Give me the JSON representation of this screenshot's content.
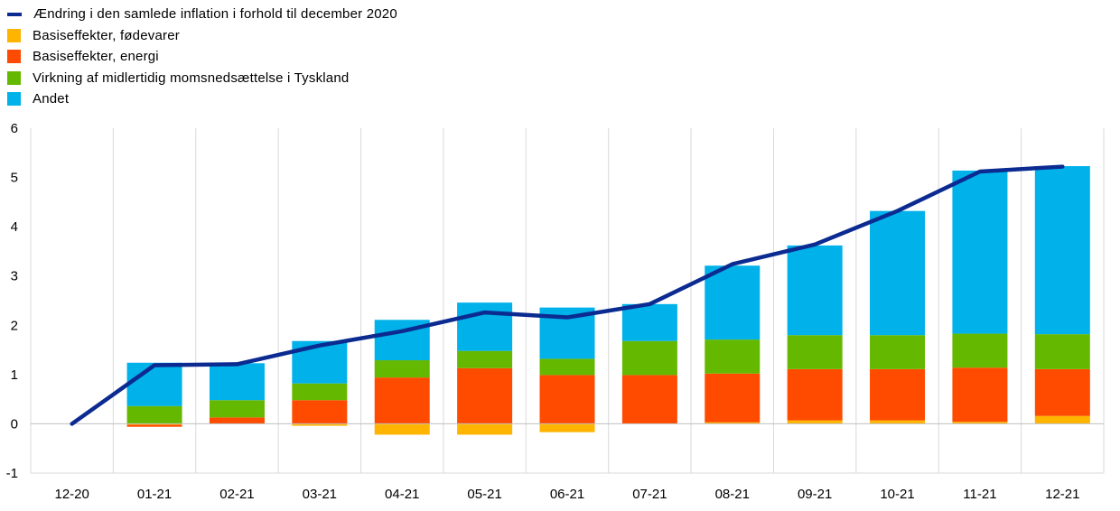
{
  "colors": {
    "line": "#0b2b91",
    "food": "#ffb400",
    "energy": "#ff4b00",
    "germany_vat": "#65b800",
    "other": "#00b1ea",
    "grid": "#d9d9d9",
    "axis": "#000000"
  },
  "chart_data": {
    "type": "bar",
    "stacked": true,
    "title": "",
    "xlabel": "",
    "ylabel": "",
    "ylim": [
      -1,
      6
    ],
    "yticks": [
      -1,
      0,
      1,
      2,
      3,
      4,
      5,
      6
    ],
    "grid": "vertical",
    "legend_position": "top-left",
    "categories": [
      "12-20",
      "01-21",
      "02-21",
      "03-21",
      "04-21",
      "05-21",
      "06-21",
      "07-21",
      "08-21",
      "09-21",
      "10-21",
      "11-21",
      "12-21"
    ],
    "series": [
      {
        "name": "Basiseffekter, fødevarer",
        "kind": "bar",
        "color_key": "food",
        "values": [
          0,
          -0.02,
          0.0,
          -0.04,
          -0.22,
          -0.22,
          -0.17,
          0.0,
          0.03,
          0.07,
          0.07,
          0.04,
          0.16
        ]
      },
      {
        "name": "Basiseffekter, energi",
        "kind": "bar",
        "color_key": "energy",
        "values": [
          0,
          -0.04,
          0.13,
          0.48,
          0.94,
          1.13,
          0.99,
          0.99,
          0.99,
          1.04,
          1.04,
          1.1,
          0.95
        ]
      },
      {
        "name": "Virkning af midlertidig momsnedsættelse i Tyskland",
        "kind": "bar",
        "color_key": "germany_vat",
        "values": [
          0,
          0.36,
          0.35,
          0.34,
          0.35,
          0.35,
          0.33,
          0.69,
          0.69,
          0.69,
          0.69,
          0.69,
          0.71
        ]
      },
      {
        "name": "Andet",
        "kind": "bar",
        "color_key": "other",
        "values": [
          0,
          0.88,
          0.75,
          0.86,
          0.82,
          0.98,
          1.04,
          0.75,
          1.5,
          1.82,
          2.52,
          3.31,
          3.41
        ]
      },
      {
        "name": "Ændring i den samlede inflation i forhold til december 2020",
        "kind": "line",
        "color_key": "line",
        "values": [
          0,
          1.19,
          1.21,
          1.59,
          1.88,
          2.26,
          2.16,
          2.43,
          3.24,
          3.64,
          4.32,
          5.12,
          5.22
        ]
      }
    ]
  },
  "legend": [
    {
      "label": "Ændring i den samlede inflation i forhold til december 2020",
      "color_key": "line",
      "shape": "line"
    },
    {
      "label": "Basiseffekter, fødevarer",
      "color_key": "food",
      "shape": "rect"
    },
    {
      "label": "Basiseffekter, energi",
      "color_key": "energy",
      "shape": "rect"
    },
    {
      "label": "Virkning af midlertidig momsnedsættelse i Tyskland",
      "color_key": "germany_vat",
      "shape": "rect"
    },
    {
      "label": "Andet",
      "color_key": "other",
      "shape": "rect"
    }
  ]
}
